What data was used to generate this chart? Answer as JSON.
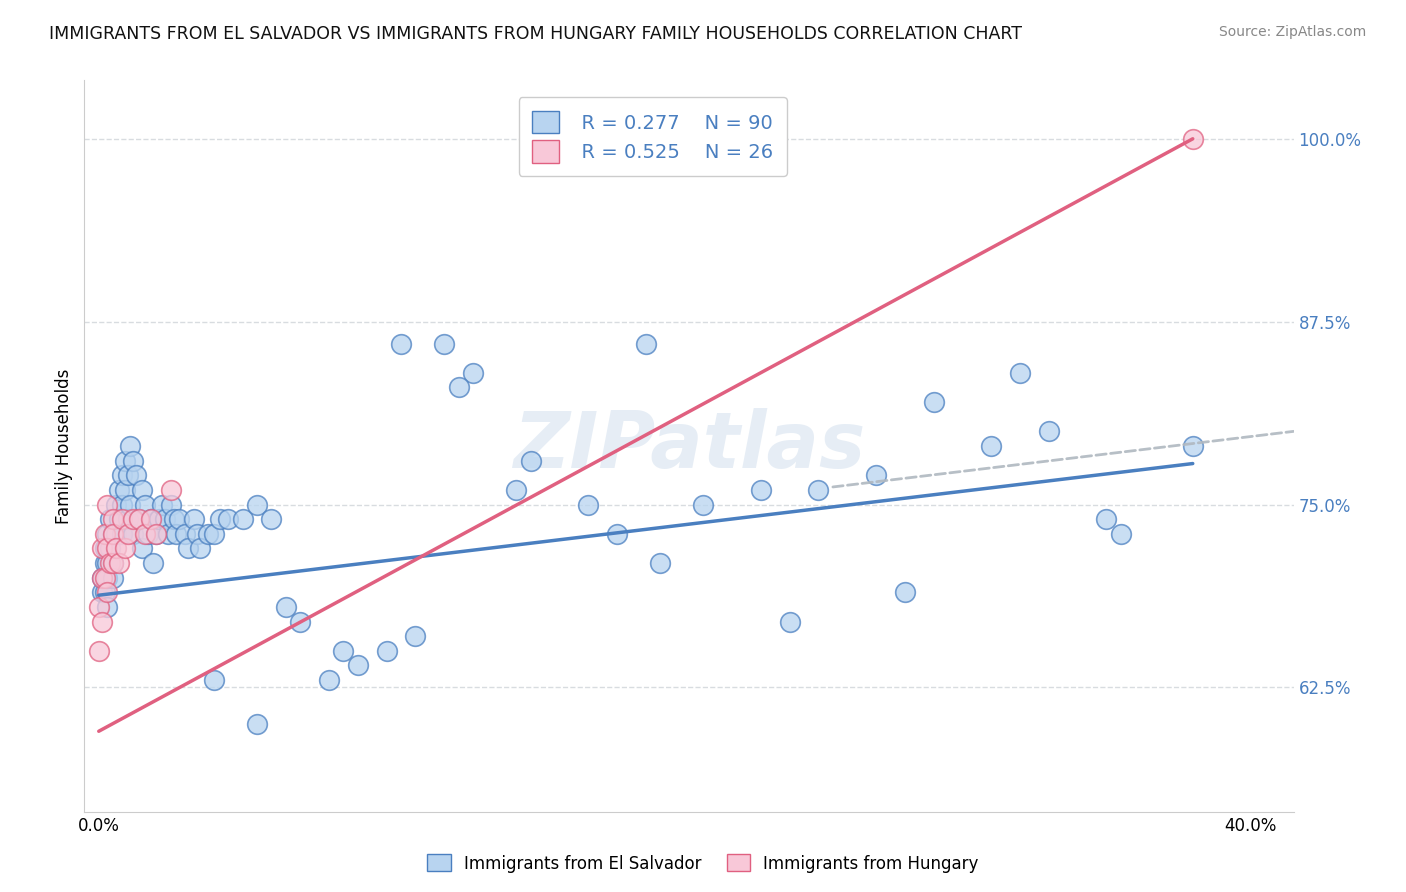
{
  "title": "IMMIGRANTS FROM EL SALVADOR VS IMMIGRANTS FROM HUNGARY FAMILY HOUSEHOLDS CORRELATION CHART",
  "source": "Source: ZipAtlas.com",
  "ylabel": "Family Households",
  "ytick_labels": [
    "100.0%",
    "87.5%",
    "75.0%",
    "62.5%"
  ],
  "ytick_values": [
    1.0,
    0.875,
    0.75,
    0.625
  ],
  "xtick_labels": [
    "0.0%",
    "40.0%"
  ],
  "xtick_values": [
    0.0,
    0.4
  ],
  "legend_r1": "R = 0.277",
  "legend_n1": "N = 90",
  "legend_r2": "R = 0.525",
  "legend_n2": "N = 26",
  "color_blue_face": "#b8d4f0",
  "color_pink_face": "#f8c8d8",
  "line_color_blue": "#4a7fc0",
  "line_color_pink": "#e06080",
  "line_color_dashed": "#b0b8c0",
  "background": "#ffffff",
  "grid_color": "#d8dce0",
  "watermark": "ZIPatlas",
  "label_blue": "Immigrants from El Salvador",
  "label_pink": "Immigrants from Hungary",
  "xlim": [
    -0.005,
    0.415
  ],
  "ylim": [
    0.54,
    1.04
  ],
  "blue_line_x": [
    0.0,
    0.38
  ],
  "blue_line_y": [
    0.688,
    0.778
  ],
  "pink_line_x": [
    0.0,
    0.38
  ],
  "pink_line_y": [
    0.595,
    1.0
  ],
  "dashed_line_x": [
    0.255,
    0.415
  ],
  "dashed_line_y": [
    0.762,
    0.8
  ],
  "el_salvador_x": [
    0.001,
    0.001,
    0.002,
    0.002,
    0.002,
    0.003,
    0.003,
    0.003,
    0.003,
    0.004,
    0.004,
    0.005,
    0.005,
    0.005,
    0.006,
    0.006,
    0.007,
    0.007,
    0.008,
    0.008,
    0.008,
    0.009,
    0.009,
    0.01,
    0.01,
    0.011,
    0.011,
    0.012,
    0.012,
    0.013,
    0.014,
    0.015,
    0.015,
    0.016,
    0.017,
    0.018,
    0.019,
    0.02,
    0.021,
    0.022,
    0.023,
    0.024,
    0.025,
    0.026,
    0.027,
    0.028,
    0.03,
    0.031,
    0.033,
    0.034,
    0.035,
    0.038,
    0.04,
    0.042,
    0.045,
    0.05,
    0.055,
    0.06,
    0.065,
    0.07,
    0.08,
    0.09,
    0.1,
    0.11,
    0.12,
    0.13,
    0.15,
    0.17,
    0.19,
    0.21,
    0.23,
    0.25,
    0.27,
    0.29,
    0.31,
    0.33,
    0.35,
    0.38,
    0.195,
    0.04,
    0.055,
    0.085,
    0.32,
    0.355,
    0.28,
    0.24,
    0.18,
    0.145,
    0.125,
    0.105
  ],
  "el_salvador_y": [
    0.7,
    0.69,
    0.72,
    0.71,
    0.69,
    0.73,
    0.71,
    0.7,
    0.68,
    0.74,
    0.72,
    0.73,
    0.71,
    0.7,
    0.75,
    0.73,
    0.76,
    0.74,
    0.77,
    0.75,
    0.73,
    0.78,
    0.76,
    0.77,
    0.74,
    0.79,
    0.75,
    0.78,
    0.73,
    0.77,
    0.74,
    0.76,
    0.72,
    0.75,
    0.73,
    0.74,
    0.71,
    0.73,
    0.74,
    0.75,
    0.74,
    0.73,
    0.75,
    0.74,
    0.73,
    0.74,
    0.73,
    0.72,
    0.74,
    0.73,
    0.72,
    0.73,
    0.73,
    0.74,
    0.74,
    0.74,
    0.75,
    0.74,
    0.68,
    0.67,
    0.63,
    0.64,
    0.65,
    0.66,
    0.86,
    0.84,
    0.78,
    0.75,
    0.86,
    0.75,
    0.76,
    0.76,
    0.77,
    0.82,
    0.79,
    0.8,
    0.74,
    0.79,
    0.71,
    0.63,
    0.6,
    0.65,
    0.84,
    0.73,
    0.69,
    0.67,
    0.73,
    0.76,
    0.83,
    0.86
  ],
  "hungary_x": [
    0.0,
    0.0,
    0.001,
    0.001,
    0.001,
    0.002,
    0.002,
    0.003,
    0.003,
    0.004,
    0.005,
    0.005,
    0.005,
    0.006,
    0.007,
    0.008,
    0.009,
    0.01,
    0.012,
    0.014,
    0.016,
    0.018,
    0.02,
    0.025,
    0.003,
    0.38
  ],
  "hungary_y": [
    0.68,
    0.65,
    0.72,
    0.7,
    0.67,
    0.73,
    0.7,
    0.75,
    0.72,
    0.71,
    0.74,
    0.73,
    0.71,
    0.72,
    0.71,
    0.74,
    0.72,
    0.73,
    0.74,
    0.74,
    0.73,
    0.74,
    0.73,
    0.76,
    0.69,
    1.0
  ]
}
